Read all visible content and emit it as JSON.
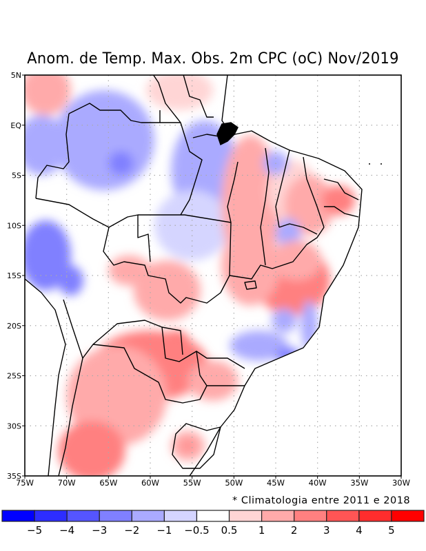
{
  "title": "Anom. de Temp. Max. Obs. 2m CPC (oC) Nov/2019",
  "note": "* Climatologia entre 2011 e 2018",
  "map": {
    "region": "Brazil / South America",
    "variable": "Observed 2m maximum temperature anomaly",
    "units": "oC",
    "source": "CPC",
    "period": "Nov/2019",
    "lon_range": [
      -75,
      -30
    ],
    "lat_range": [
      -35,
      5
    ],
    "x_ticks": [
      {
        "value": -75,
        "label": "75W"
      },
      {
        "value": -70,
        "label": "70W"
      },
      {
        "value": -65,
        "label": "65W"
      },
      {
        "value": -60,
        "label": "60W"
      },
      {
        "value": -55,
        "label": "55W"
      },
      {
        "value": -50,
        "label": "50W"
      },
      {
        "value": -45,
        "label": "45W"
      },
      {
        "value": -40,
        "label": "40W"
      },
      {
        "value": -35,
        "label": "35W"
      },
      {
        "value": -30,
        "label": "30W"
      }
    ],
    "y_ticks": [
      {
        "value": 5,
        "label": "5N"
      },
      {
        "value": 0,
        "label": "EQ"
      },
      {
        "value": -5,
        "label": "5S"
      },
      {
        "value": -10,
        "label": "10S"
      },
      {
        "value": -15,
        "label": "15S"
      },
      {
        "value": -20,
        "label": "20S"
      },
      {
        "value": -25,
        "label": "25S"
      },
      {
        "value": -30,
        "label": "30S"
      },
      {
        "value": -35,
        "label": "35S"
      }
    ],
    "grid": "dotted",
    "anomaly_blobs": [
      {
        "lon": -72.5,
        "lat": 3.5,
        "value": 1.5,
        "rx": 3,
        "ry": 2.5
      },
      {
        "lon": -65.5,
        "lat": -1.5,
        "value": -1.5,
        "rx": 6,
        "ry": 5
      },
      {
        "lon": -63.5,
        "lat": -3.8,
        "value": -2.5,
        "rx": 1.5,
        "ry": 1.2
      },
      {
        "lon": -73,
        "lat": -2,
        "value": -1.5,
        "rx": 3,
        "ry": 3
      },
      {
        "lon": -53.5,
        "lat": -4.5,
        "value": -1.5,
        "rx": 4,
        "ry": 5
      },
      {
        "lon": -54.5,
        "lat": -9.8,
        "value": -2,
        "rx": 2.5,
        "ry": 2
      },
      {
        "lon": -55,
        "lat": -10,
        "value": -0.75,
        "rx": 4.5,
        "ry": 3.5
      },
      {
        "lon": -72.5,
        "lat": -13,
        "value": -2,
        "rx": 3,
        "ry": 3.5
      },
      {
        "lon": -69.5,
        "lat": -15.5,
        "value": -2.5,
        "rx": 1.5,
        "ry": 1.5
      },
      {
        "lon": -56.5,
        "lat": 3.5,
        "value": 0.75,
        "rx": 4,
        "ry": 2
      },
      {
        "lon": -48,
        "lat": -8,
        "value": 1.5,
        "rx": 3.5,
        "ry": 7
      },
      {
        "lon": -43,
        "lat": -6.5,
        "value": 0.75,
        "rx": 3,
        "ry": 3
      },
      {
        "lon": -45,
        "lat": -3.8,
        "value": -1.5,
        "rx": 1.5,
        "ry": 1.2
      },
      {
        "lon": -41,
        "lat": -8,
        "value": 2,
        "rx": 3,
        "ry": 3
      },
      {
        "lon": -37.5,
        "lat": -7.5,
        "value": 2.5,
        "rx": 2,
        "ry": 1.5
      },
      {
        "lon": -43.5,
        "lat": -10.8,
        "value": -1.5,
        "rx": 1.5,
        "ry": 1.5
      },
      {
        "lon": -43,
        "lat": -15.5,
        "value": 2.5,
        "rx": 4.5,
        "ry": 3.5
      },
      {
        "lon": -42.5,
        "lat": -13.5,
        "value": 2,
        "rx": 3,
        "ry": 2
      },
      {
        "lon": -48,
        "lat": -14,
        "value": 1.5,
        "rx": 3.5,
        "ry": 4
      },
      {
        "lon": -44,
        "lat": -19.5,
        "value": -1.5,
        "rx": 1.5,
        "ry": 1.2
      },
      {
        "lon": -47,
        "lat": -22,
        "value": -1.5,
        "rx": 3.5,
        "ry": 1.5
      },
      {
        "lon": -43.5,
        "lat": -23,
        "value": -2.5,
        "rx": 1.5,
        "ry": 0.8
      },
      {
        "lon": -41,
        "lat": -20,
        "value": -1.2,
        "rx": 1,
        "ry": 2.5
      },
      {
        "lon": -62.5,
        "lat": -14.5,
        "value": 1.5,
        "rx": 2.5,
        "ry": 1.5
      },
      {
        "lon": -58,
        "lat": -16.5,
        "value": 1.5,
        "rx": 4,
        "ry": 3
      },
      {
        "lon": -57,
        "lat": -23.5,
        "value": 3.5,
        "rx": 2.5,
        "ry": 3
      },
      {
        "lon": -63.5,
        "lat": -23.5,
        "value": 3.5,
        "rx": 2,
        "ry": 1.8
      },
      {
        "lon": -60,
        "lat": -24,
        "value": 2.5,
        "rx": 7,
        "ry": 3.5
      },
      {
        "lon": -64,
        "lat": -27,
        "value": 1.5,
        "rx": 6,
        "ry": 5
      },
      {
        "lon": -52.5,
        "lat": -25.5,
        "value": 1.5,
        "rx": 3,
        "ry": 2
      },
      {
        "lon": -67,
        "lat": -32.5,
        "value": 2.5,
        "rx": 4,
        "ry": 3
      },
      {
        "lon": -55.5,
        "lat": -32,
        "value": 1.5,
        "rx": 2,
        "ry": 1.5
      },
      {
        "lon": -55.5,
        "lat": -32,
        "value": 2.5,
        "rx": 0.6,
        "ry": 0.5
      }
    ]
  },
  "colorbar": {
    "levels": [
      "-5",
      "-4",
      "-3",
      "-2",
      "-1",
      "-0.5",
      "0.5",
      "1",
      "2",
      "3",
      "4",
      "5"
    ],
    "colors": [
      "#0000ff",
      "#2d2dff",
      "#5555ff",
      "#8080ff",
      "#aaaaff",
      "#d5d5ff",
      "#ffffff",
      "#ffd5d5",
      "#ffaaaa",
      "#ff8080",
      "#ff5555",
      "#ff2d2d",
      "#ff0000"
    ]
  }
}
